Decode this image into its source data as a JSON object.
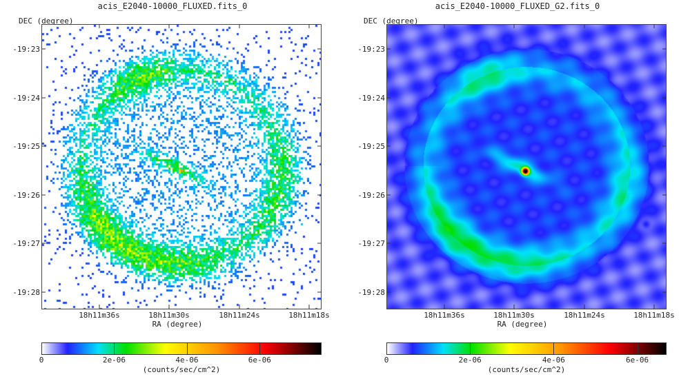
{
  "chart_data": [
    {
      "type": "heatmap",
      "title": "acis_E2040-10000_FLUXED.fits_0",
      "xlabel": "RA (degree)",
      "ylabel": "DEC (degree)",
      "x_tick_labels": [
        "18h11m36s",
        "18h11m30s",
        "18h11m24s",
        "18h11m18s"
      ],
      "y_tick_labels": [
        "-19:23",
        "-19:24",
        "-19:25",
        "-19:26",
        "-19:27",
        "-19:28"
      ],
      "colorbar": {
        "label": "(counts/sec/cm^2)",
        "tick_labels": [
          "0",
          "2e-06",
          "4e-06",
          "6e-06"
        ],
        "tick_values": [
          0,
          2e-06,
          4e-06,
          6e-06
        ],
        "range": [
          0,
          7.7e-06
        ],
        "colormap": "rainbow: white, blue, cyan, green, yellow, orange, red, black"
      },
      "smoothing": "none",
      "features": {
        "shell": "faint noisy shell, brighter arc on the south-east (lower-left) side",
        "central_source": "single bright pixel with an elongated cyan-green streak",
        "background": "sparse speckle of blue pixels on white"
      }
    },
    {
      "type": "heatmap",
      "title": "acis_E2040-10000_FLUXED_G2.fits_0",
      "xlabel": "RA (degree)",
      "ylabel": "DEC (degree)",
      "x_tick_labels": [
        "18h11m36s",
        "18h11m30s",
        "18h11m24s",
        "18h11m18s"
      ],
      "y_tick_labels": [
        "-19:23",
        "-19:24",
        "-19:25",
        "-19:26",
        "-19:27",
        "-19:28"
      ],
      "colorbar": {
        "label": "(counts/sec/cm^2)",
        "tick_labels": [
          "0",
          "2e-06",
          "4e-06",
          "6e-06"
        ],
        "tick_values": [
          0,
          2e-06,
          4e-06,
          6e-06
        ],
        "range": [
          0,
          6.7e-06
        ],
        "colormap": "rainbow: white, blue, cyan, green, yellow, orange, red, black"
      },
      "smoothing": "gaussian",
      "features": {
        "shell": "smooth blue ring with cyan bright arcs (north-east and south-east)",
        "central_source": "red/black compact source with yellow-green halo and cyan streak",
        "background": "pale lavender-blue diffuse emission"
      }
    }
  ],
  "colors": {
    "colormap_stops": [
      "#ffffff",
      "#2222ff",
      "#00e0ff",
      "#00e000",
      "#ffff00",
      "#ff9900",
      "#ff0000",
      "#000000"
    ],
    "frame": "#444444",
    "text": "#222222"
  }
}
